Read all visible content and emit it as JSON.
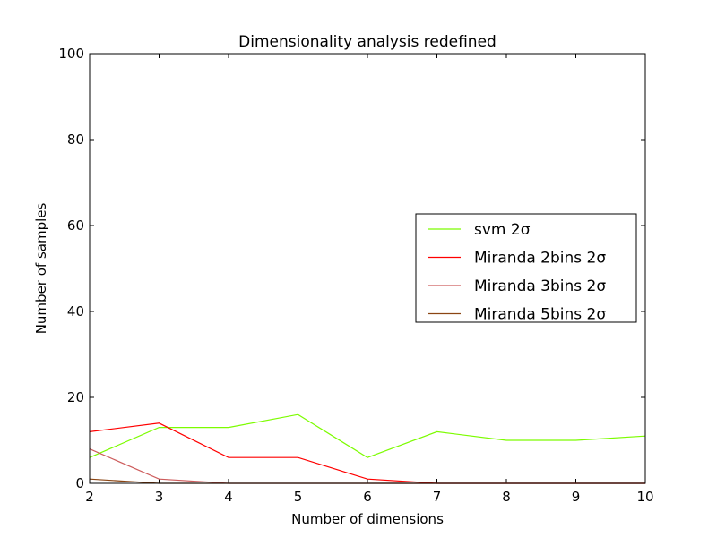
{
  "chart_data": {
    "type": "line",
    "title": "Dimensionality analysis redefined",
    "xlabel": "Number of dimensions",
    "ylabel": "Number of samples",
    "xlim": [
      2,
      10
    ],
    "ylim": [
      0,
      100
    ],
    "xticks": [
      2,
      3,
      4,
      5,
      6,
      7,
      8,
      9,
      10
    ],
    "yticks": [
      0,
      20,
      40,
      60,
      80,
      100
    ],
    "grid": false,
    "legend_position": "center-right",
    "x": [
      2,
      3,
      4,
      5,
      6,
      7,
      8,
      9,
      10
    ],
    "series": [
      {
        "name": "svm 2σ",
        "color": "#7cfc00",
        "values": [
          6,
          13,
          13,
          16,
          6,
          12,
          10,
          10,
          11
        ]
      },
      {
        "name": "Miranda 2bins 2σ",
        "color": "#ff0000",
        "values": [
          12,
          14,
          6,
          6,
          1,
          0,
          0,
          0,
          0
        ]
      },
      {
        "name": "Miranda 3bins 2σ",
        "color": "#cd5c5c",
        "values": [
          8,
          1,
          0,
          0,
          0,
          0,
          0,
          0,
          0
        ]
      },
      {
        "name": "Miranda 5bins 2σ",
        "color": "#8b4513",
        "values": [
          1,
          0,
          0,
          0,
          0,
          0,
          0,
          0,
          0
        ]
      }
    ]
  }
}
